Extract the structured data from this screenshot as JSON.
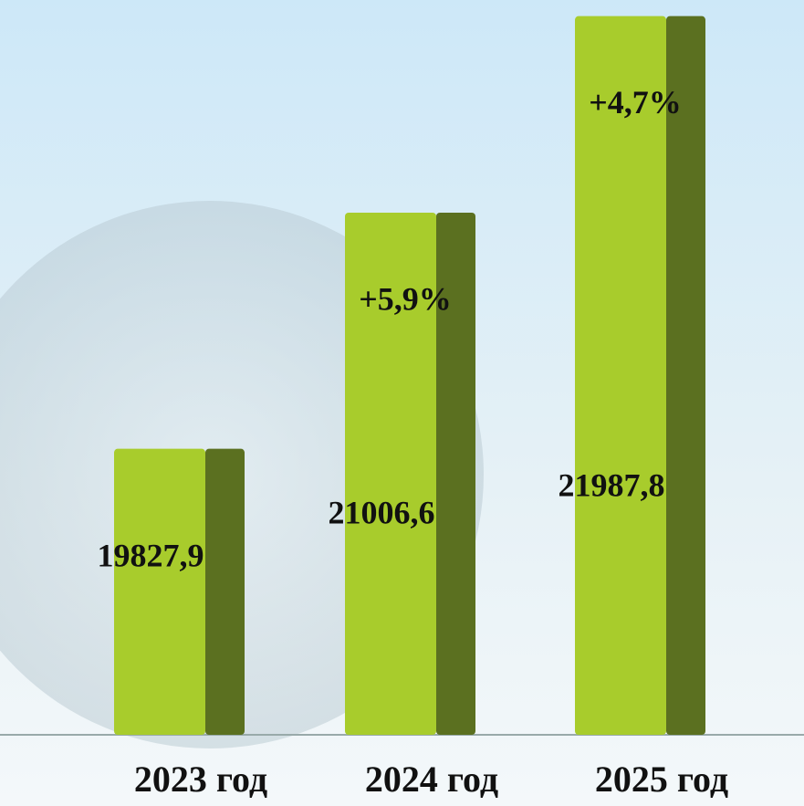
{
  "chart_data": {
    "type": "bar",
    "categories": [
      "2023 год",
      "2024 год",
      "2025 год"
    ],
    "values": [
      19827.9,
      21006.6,
      21987.8
    ],
    "value_labels": [
      "19827,9",
      "21006,6",
      "21987,8"
    ],
    "growth_labels": [
      null,
      "+5,9%",
      "+4,7%"
    ],
    "color": "#a8cc2c",
    "ylim": [
      18400,
      22000
    ]
  }
}
